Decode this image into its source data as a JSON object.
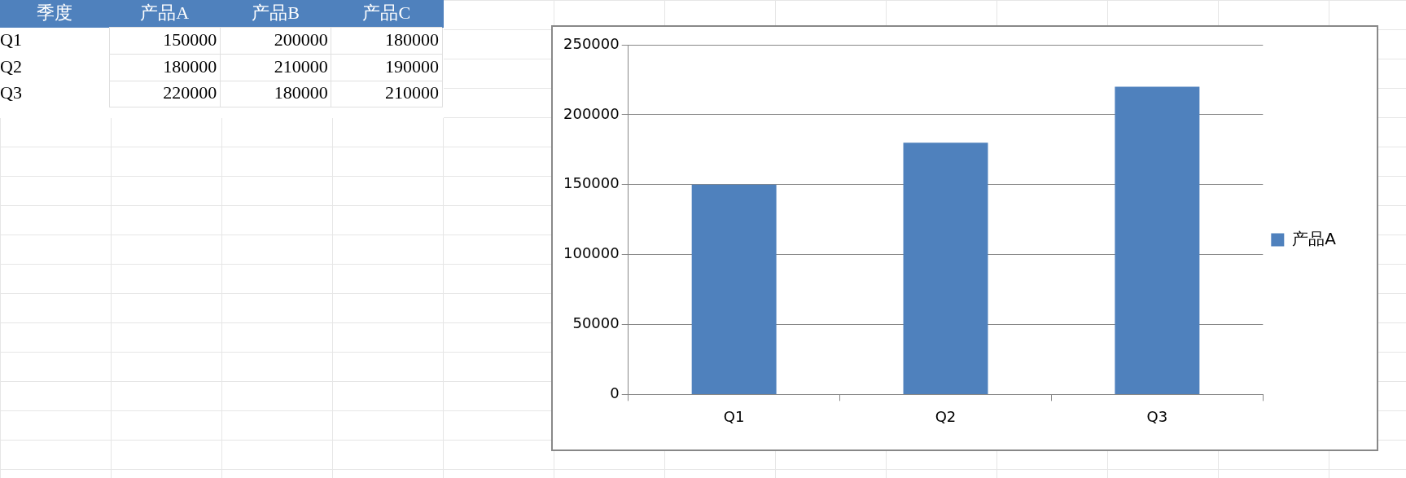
{
  "chart_data": [
    {
      "type": "heatmap",
      "ylabel": "季度",
      "categories": [
        "产品A",
        "产品B",
        "产品C"
      ],
      "y_categories": [
        "Q1",
        "Q2",
        "Q3"
      ],
      "cells": [
        [
          150000,
          200000,
          180000
        ],
        [
          180000,
          210000,
          190000
        ],
        [
          220000,
          180000,
          210000
        ]
      ],
      "data_labels": true
    },
    {
      "type": "bar",
      "categories": [
        "Q1",
        "Q2",
        "Q3"
      ],
      "series": [
        {
          "name": "产品A",
          "color": "#4f81bd",
          "values": [
            150000,
            180000,
            220000
          ]
        }
      ],
      "ylim": [
        0,
        250000
      ],
      "yticks": [
        0,
        50000,
        100000,
        150000,
        200000,
        250000
      ],
      "grid": "y",
      "legend": "right"
    }
  ]
}
